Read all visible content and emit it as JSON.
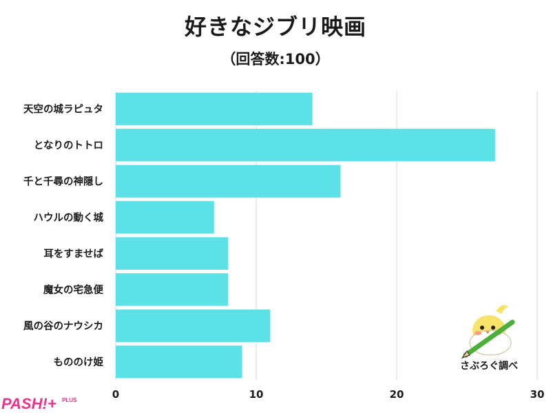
{
  "title": "好きなジブリ映画",
  "subtitle": "（回答数:100）",
  "credit": "さぶろぐ調べ",
  "logo_text": "PASH!+",
  "logo_small": "PLUS",
  "colors": {
    "bar": "#5ce1e6",
    "grid": "#d9d9d9",
    "text": "#1a1a1a",
    "logo": "#f0338a"
  },
  "chart_data": {
    "type": "bar",
    "orientation": "horizontal",
    "title": "好きなジブリ映画",
    "subtitle": "（回答数:100）",
    "categories": [
      "天空の城ラピュタ",
      "となりのトトロ",
      "千と千尋の神隠し",
      "ハウルの動く城",
      "耳をすませば",
      "魔女の宅急便",
      "風の谷のナウシカ",
      "もののけ姫"
    ],
    "values": [
      14,
      27,
      16,
      7,
      8,
      8,
      11,
      9
    ],
    "xlim": [
      0,
      30
    ],
    "xticks": [
      0,
      10,
      20,
      30
    ],
    "grid": true,
    "xlabel": "",
    "ylabel": ""
  }
}
